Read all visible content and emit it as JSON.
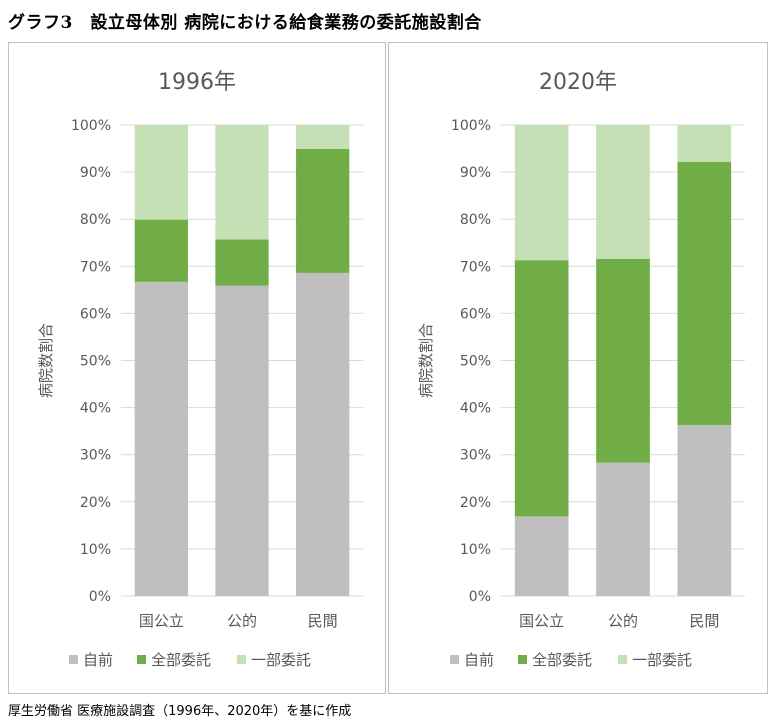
{
  "title": "グラフ3　設立母体別 病院における給食業務の委託施設割合",
  "source": "厚生労働省 医療施設調査（1996年、2020年）を基に作成",
  "colors": {
    "self": "#bfbfbf",
    "full": "#70ad47",
    "partial": "#c5e0b4",
    "grid": "#d9d9d9",
    "axis_text": "#595959"
  },
  "chart_data": [
    {
      "type": "bar",
      "stacked": true,
      "title": "1996年",
      "ylabel": "病院数割合",
      "xlabel": "",
      "ylim": [
        0,
        100
      ],
      "yticks": [
        "0%",
        "10%",
        "20%",
        "30%",
        "40%",
        "50%",
        "60%",
        "70%",
        "80%",
        "90%",
        "100%"
      ],
      "categories": [
        "国公立",
        "公的",
        "民間"
      ],
      "series": [
        {
          "name": "自前",
          "key": "self",
          "values": [
            66.7,
            65.9,
            68.6
          ]
        },
        {
          "name": "全部委託",
          "key": "full",
          "values": [
            13.2,
            9.8,
            26.3
          ]
        },
        {
          "name": "一部委託",
          "key": "partial",
          "values": [
            20.1,
            24.3,
            5.1
          ]
        }
      ],
      "legend": [
        "自前",
        "全部委託",
        "一部委託"
      ],
      "legend_position": "bottom"
    },
    {
      "type": "bar",
      "stacked": true,
      "title": "2020年",
      "ylabel": "病院数割合",
      "xlabel": "",
      "ylim": [
        0,
        100
      ],
      "yticks": [
        "0%",
        "10%",
        "20%",
        "30%",
        "40%",
        "50%",
        "60%",
        "70%",
        "80%",
        "90%",
        "100%"
      ],
      "categories": [
        "国公立",
        "公的",
        "民間"
      ],
      "series": [
        {
          "name": "自前",
          "key": "self",
          "values": [
            16.9,
            28.3,
            36.3
          ]
        },
        {
          "name": "全部委託",
          "key": "full",
          "values": [
            54.4,
            43.3,
            55.9
          ]
        },
        {
          "name": "一部委託",
          "key": "partial",
          "values": [
            28.7,
            28.4,
            7.8
          ]
        }
      ],
      "legend": [
        "自前",
        "全部委託",
        "一部委託"
      ],
      "legend_position": "bottom"
    }
  ]
}
